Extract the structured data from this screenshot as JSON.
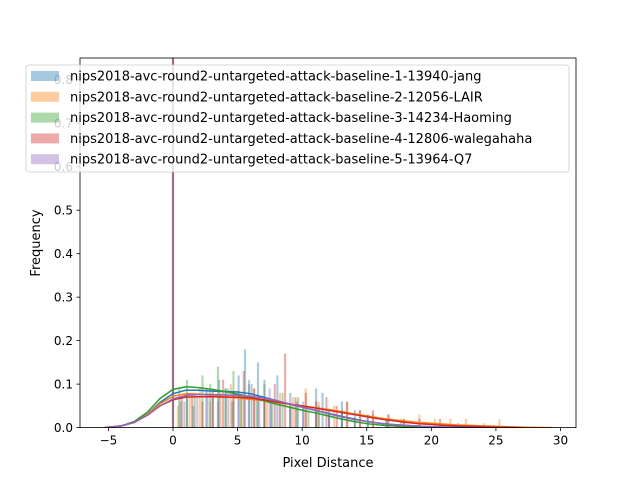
{
  "chart_data": {
    "type": "histogram",
    "xlabel": "Pixel Distance",
    "ylabel": "Frequency",
    "xlim": [
      -7.2,
      31.2
    ],
    "ylim": [
      0,
      0.85
    ],
    "xticks": [
      -5,
      0,
      5,
      10,
      15,
      20,
      25,
      30
    ],
    "yticks": [
      0.0,
      0.1,
      0.2,
      0.3,
      0.4,
      0.5,
      0.6,
      0.7,
      0.8
    ],
    "ytick_labels": [
      "0.0",
      "0.1",
      "0.2",
      "0.3",
      "0.4",
      "0.5",
      "0.6",
      "0.7",
      "0.8"
    ],
    "legend_position": "top",
    "series": [
      {
        "name": "nips2018-avc-round2-untargeted-attack-baseline-1-13940-jang",
        "color": "#1f77b4",
        "spike_height": 0.85,
        "bars": [
          [
            0.5,
            0.06
          ],
          [
            1.0,
            0.08
          ],
          [
            1.5,
            0.05
          ],
          [
            2.5,
            0.09
          ],
          [
            3.0,
            0.07
          ],
          [
            3.5,
            0.11
          ],
          [
            4.0,
            0.09
          ],
          [
            4.5,
            0.06
          ],
          [
            5.0,
            0.12
          ],
          [
            5.5,
            0.18
          ],
          [
            6.0,
            0.1
          ],
          [
            6.5,
            0.15
          ],
          [
            7.0,
            0.11
          ],
          [
            7.5,
            0.06
          ],
          [
            8.0,
            0.12
          ],
          [
            9.0,
            0.08
          ],
          [
            9.5,
            0.06
          ],
          [
            10.0,
            0.05
          ],
          [
            11.0,
            0.09
          ],
          [
            11.5,
            0.08
          ],
          [
            12.0,
            0.04
          ],
          [
            13.0,
            0.06
          ],
          [
            14.0,
            0.04
          ],
          [
            15.0,
            0.03
          ],
          [
            16.5,
            0.02
          ]
        ],
        "kde": [
          [
            -5.3,
            0.0
          ],
          [
            -4,
            0.004
          ],
          [
            -3,
            0.012
          ],
          [
            -2,
            0.03
          ],
          [
            -1,
            0.058
          ],
          [
            0,
            0.078
          ],
          [
            1,
            0.086
          ],
          [
            2,
            0.086
          ],
          [
            3,
            0.084
          ],
          [
            4,
            0.083
          ],
          [
            5,
            0.082
          ],
          [
            6,
            0.078
          ],
          [
            7,
            0.07
          ],
          [
            8,
            0.062
          ],
          [
            9,
            0.054
          ],
          [
            10,
            0.047
          ],
          [
            11,
            0.04
          ],
          [
            12,
            0.033
          ],
          [
            13,
            0.026
          ],
          [
            14,
            0.02
          ],
          [
            15,
            0.014
          ],
          [
            16,
            0.01
          ],
          [
            17,
            0.007
          ],
          [
            18,
            0.005
          ],
          [
            20,
            0.002
          ],
          [
            22,
            0.001
          ],
          [
            24,
            0.0
          ]
        ]
      },
      {
        "name": "nips2018-avc-round2-untargeted-attack-baseline-2-12056-LAIR",
        "color": "#ff7f0e",
        "spike_height": 0.85,
        "bars": [
          [
            0.3,
            0.05
          ],
          [
            1.2,
            0.07
          ],
          [
            2.0,
            0.09
          ],
          [
            2.8,
            0.06
          ],
          [
            3.6,
            0.08
          ],
          [
            4.4,
            0.1
          ],
          [
            5.2,
            0.07
          ],
          [
            6.2,
            0.09
          ],
          [
            7.2,
            0.06
          ],
          [
            8.2,
            0.08
          ],
          [
            9.2,
            0.07
          ],
          [
            10.2,
            0.09
          ],
          [
            11.2,
            0.06
          ],
          [
            12.4,
            0.05
          ],
          [
            13.4,
            0.06
          ],
          [
            14.4,
            0.04
          ],
          [
            15.4,
            0.03
          ],
          [
            16.6,
            0.03
          ],
          [
            17.8,
            0.02
          ],
          [
            19.0,
            0.03
          ],
          [
            20.2,
            0.02
          ],
          [
            21.4,
            0.02
          ],
          [
            22.6,
            0.02
          ],
          [
            24.0,
            0.01
          ],
          [
            25.2,
            0.02
          ]
        ],
        "kde": [
          [
            -5.3,
            0.0
          ],
          [
            -4,
            0.004
          ],
          [
            -3,
            0.012
          ],
          [
            -2,
            0.03
          ],
          [
            -1,
            0.055
          ],
          [
            0,
            0.072
          ],
          [
            1,
            0.078
          ],
          [
            2,
            0.077
          ],
          [
            3,
            0.074
          ],
          [
            4,
            0.071
          ],
          [
            5,
            0.068
          ],
          [
            6,
            0.065
          ],
          [
            7,
            0.062
          ],
          [
            8,
            0.058
          ],
          [
            9,
            0.054
          ],
          [
            10,
            0.05
          ],
          [
            11,
            0.046
          ],
          [
            12,
            0.042
          ],
          [
            13,
            0.037
          ],
          [
            14,
            0.032
          ],
          [
            15,
            0.027
          ],
          [
            16,
            0.022
          ],
          [
            17,
            0.018
          ],
          [
            18,
            0.015
          ],
          [
            19,
            0.012
          ],
          [
            20,
            0.01
          ],
          [
            21,
            0.008
          ],
          [
            22,
            0.006
          ],
          [
            23,
            0.005
          ],
          [
            24,
            0.004
          ],
          [
            25,
            0.003
          ],
          [
            26,
            0.002
          ],
          [
            27,
            0.001
          ],
          [
            28,
            0.0005
          ],
          [
            29.4,
            0.0
          ]
        ]
      },
      {
        "name": "nips2018-avc-round2-untargeted-attack-baseline-3-14234-Haoming",
        "color": "#2ca02c",
        "spike_height": 0.85,
        "bars": [
          [
            0.4,
            0.09
          ],
          [
            1.0,
            0.11
          ],
          [
            1.6,
            0.08
          ],
          [
            2.2,
            0.12
          ],
          [
            2.8,
            0.1
          ],
          [
            3.4,
            0.14
          ],
          [
            4.0,
            0.09
          ],
          [
            4.6,
            0.13
          ],
          [
            5.2,
            0.08
          ],
          [
            5.8,
            0.11
          ],
          [
            6.4,
            0.07
          ],
          [
            7.0,
            0.1
          ],
          [
            7.6,
            0.06
          ],
          [
            8.4,
            0.08
          ],
          [
            9.0,
            0.05
          ],
          [
            9.6,
            0.07
          ],
          [
            10.4,
            0.04
          ],
          [
            11.2,
            0.05
          ],
          [
            12.0,
            0.03
          ],
          [
            13.0,
            0.04
          ],
          [
            14.0,
            0.02
          ],
          [
            15.0,
            0.03
          ],
          [
            16.4,
            0.02
          ],
          [
            17.6,
            0.02
          ]
        ],
        "kde": [
          [
            -5.3,
            0.0
          ],
          [
            -4,
            0.004
          ],
          [
            -3,
            0.014
          ],
          [
            -2,
            0.035
          ],
          [
            -1,
            0.067
          ],
          [
            0,
            0.088
          ],
          [
            1,
            0.094
          ],
          [
            2,
            0.092
          ],
          [
            3,
            0.088
          ],
          [
            4,
            0.083
          ],
          [
            5,
            0.077
          ],
          [
            6,
            0.07
          ],
          [
            7,
            0.062
          ],
          [
            8,
            0.054
          ],
          [
            9,
            0.047
          ],
          [
            10,
            0.04
          ],
          [
            11,
            0.034
          ],
          [
            12,
            0.027
          ],
          [
            13,
            0.02
          ],
          [
            14,
            0.014
          ],
          [
            15,
            0.009
          ],
          [
            16,
            0.006
          ],
          [
            17,
            0.004
          ],
          [
            18,
            0.002
          ],
          [
            20,
            0.0
          ]
        ]
      },
      {
        "name": "nips2018-avc-round2-untargeted-attack-baseline-4-12806-walegahaha",
        "color": "#d62728",
        "spike_height": 0.85,
        "bars": [
          [
            0.6,
            0.07
          ],
          [
            1.4,
            0.08
          ],
          [
            2.2,
            0.06
          ],
          [
            3.0,
            0.09
          ],
          [
            3.8,
            0.11
          ],
          [
            4.6,
            0.08
          ],
          [
            5.4,
            0.13
          ],
          [
            6.2,
            0.09
          ],
          [
            7.0,
            0.07
          ],
          [
            7.8,
            0.1
          ],
          [
            8.6,
            0.17
          ],
          [
            9.4,
            0.07
          ],
          [
            10.2,
            0.08
          ],
          [
            11.0,
            0.06
          ],
          [
            11.8,
            0.07
          ],
          [
            12.6,
            0.05
          ],
          [
            13.4,
            0.06
          ],
          [
            14.4,
            0.04
          ],
          [
            15.4,
            0.04
          ],
          [
            16.6,
            0.03
          ],
          [
            17.8,
            0.02
          ],
          [
            19.0,
            0.02
          ],
          [
            20.6,
            0.02
          ],
          [
            22.0,
            0.01
          ]
        ],
        "kde": [
          [
            -5.3,
            0.0
          ],
          [
            -4,
            0.004
          ],
          [
            -3,
            0.012
          ],
          [
            -2,
            0.028
          ],
          [
            -1,
            0.05
          ],
          [
            0,
            0.064
          ],
          [
            1,
            0.07
          ],
          [
            2,
            0.071
          ],
          [
            3,
            0.071
          ],
          [
            4,
            0.07
          ],
          [
            5,
            0.07
          ],
          [
            6,
            0.068
          ],
          [
            7,
            0.064
          ],
          [
            8,
            0.059
          ],
          [
            9,
            0.054
          ],
          [
            10,
            0.05
          ],
          [
            11,
            0.045
          ],
          [
            12,
            0.04
          ],
          [
            13,
            0.035
          ],
          [
            14,
            0.03
          ],
          [
            15,
            0.025
          ],
          [
            16,
            0.02
          ],
          [
            17,
            0.016
          ],
          [
            18,
            0.012
          ],
          [
            19,
            0.009
          ],
          [
            20,
            0.007
          ],
          [
            21,
            0.005
          ],
          [
            22,
            0.004
          ],
          [
            23,
            0.003
          ],
          [
            25,
            0.001
          ],
          [
            27,
            0.0
          ]
        ]
      },
      {
        "name": "nips2018-avc-round2-untargeted-attack-baseline-5-13964-Q7",
        "color": "#9467bd",
        "spike_height": 0.85,
        "bars": [
          [
            0.8,
            0.06
          ],
          [
            1.8,
            0.07
          ],
          [
            2.6,
            0.08
          ],
          [
            3.4,
            0.06
          ],
          [
            4.2,
            0.09
          ],
          [
            5.0,
            0.08
          ],
          [
            5.8,
            0.1
          ],
          [
            6.6,
            0.07
          ],
          [
            7.4,
            0.09
          ],
          [
            8.2,
            0.06
          ],
          [
            9.0,
            0.05
          ],
          [
            10.0,
            0.06
          ],
          [
            11.0,
            0.04
          ],
          [
            12.0,
            0.03
          ],
          [
            13.0,
            0.04
          ]
        ],
        "kde": [
          [
            -5.3,
            0.0
          ],
          [
            -4,
            0.004
          ],
          [
            -3,
            0.012
          ],
          [
            -2,
            0.028
          ],
          [
            -1,
            0.05
          ],
          [
            0,
            0.066
          ],
          [
            1,
            0.074
          ],
          [
            2,
            0.076
          ],
          [
            3,
            0.076
          ],
          [
            4,
            0.075
          ],
          [
            5,
            0.074
          ],
          [
            6,
            0.072
          ],
          [
            7,
            0.068
          ],
          [
            8,
            0.062
          ],
          [
            9,
            0.055
          ],
          [
            10,
            0.047
          ],
          [
            11,
            0.04
          ],
          [
            12,
            0.032
          ],
          [
            13,
            0.025
          ],
          [
            14,
            0.019
          ],
          [
            15,
            0.014
          ],
          [
            16,
            0.01
          ],
          [
            17,
            0.007
          ],
          [
            18,
            0.005
          ],
          [
            20,
            0.002
          ],
          [
            22,
            0.0
          ]
        ]
      }
    ]
  }
}
